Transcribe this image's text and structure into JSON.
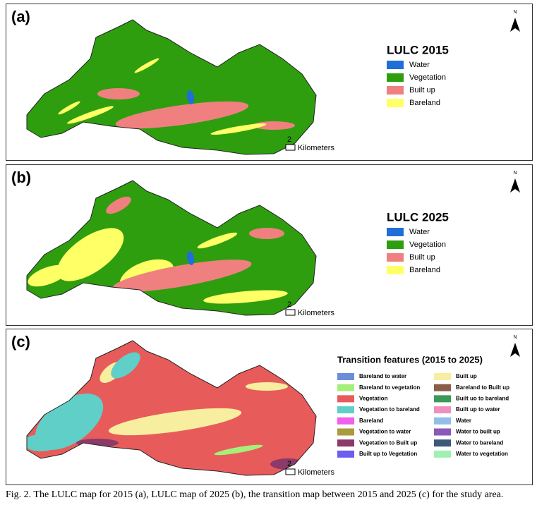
{
  "panels": [
    {
      "label": "(a)",
      "north": "N",
      "scale": 2,
      "unit": "Kilometers",
      "legend": {
        "title": "LULC 2015",
        "items": [
          {
            "name": "Water",
            "color": "#1f6fd6"
          },
          {
            "name": "Vegetation",
            "color": "#2e9e0f"
          },
          {
            "name": "Built up",
            "color": "#f08080"
          },
          {
            "name": "Bareland",
            "color": "#ffff66"
          }
        ]
      }
    },
    {
      "label": "(b)",
      "north": "N",
      "scale": 2,
      "unit": "Kilometers",
      "legend": {
        "title": "LULC 2025",
        "items": [
          {
            "name": "Water",
            "color": "#1f6fd6"
          },
          {
            "name": "Vegetation",
            "color": "#2e9e0f"
          },
          {
            "name": "Built up",
            "color": "#f08080"
          },
          {
            "name": "Bareland",
            "color": "#ffff66"
          }
        ]
      }
    },
    {
      "label": "(c)",
      "north": "N",
      "scale": 2,
      "unit": "Kilometers",
      "legend": {
        "title": "Transition features (2015 to 2025)",
        "items": [
          {
            "name": "Bareland to water",
            "color": "#6a8fd8"
          },
          {
            "name": "Bareland to vegetation",
            "color": "#a5f07a"
          },
          {
            "name": "Vegetation",
            "color": "#e85b5b"
          },
          {
            "name": "Vegetation to bareland",
            "color": "#5fcfc8"
          },
          {
            "name": "Bareland",
            "color": "#f060e8"
          },
          {
            "name": "Vegetation to water",
            "color": "#a89c3c"
          },
          {
            "name": "Vegetation to Built up",
            "color": "#8b3a6a"
          },
          {
            "name": "Built up to Vegetation",
            "color": "#6b5ef0"
          },
          {
            "name": "Built up",
            "color": "#f7eea0"
          },
          {
            "name": "Bareland to Built up",
            "color": "#8b5e4a"
          },
          {
            "name": "Built uo to bareland",
            "color": "#3a9a5a"
          },
          {
            "name": "Built up to water",
            "color": "#f090c0"
          },
          {
            "name": "Water",
            "color": "#90c0e8"
          },
          {
            "name": "Water to built up",
            "color": "#8a5ab8"
          },
          {
            "name": "Water to bareland",
            "color": "#3a5a78"
          },
          {
            "name": "Water to vegetation",
            "color": "#a0f0b0"
          }
        ]
      }
    }
  ],
  "caption": "Fig. 2. The LULC map for 2015 (a), LULC map of 2025 (b), the transition map between 2015 and 2025 (c) for the study area."
}
